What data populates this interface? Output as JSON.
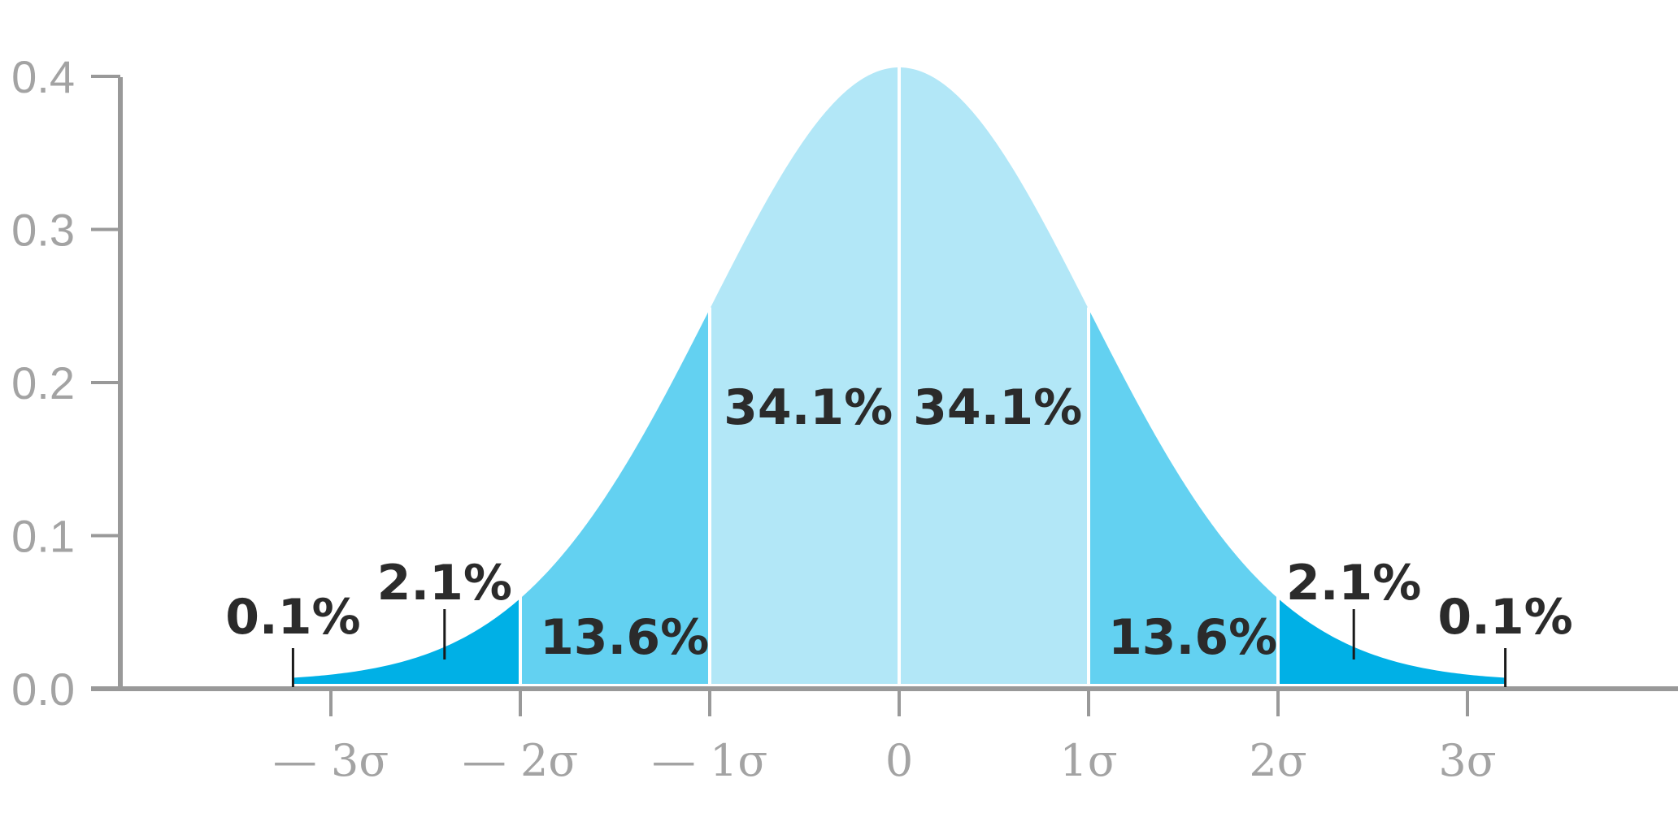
{
  "chart_data": {
    "type": "area",
    "title": "",
    "xlabel": "",
    "ylabel": "",
    "xlim": [
      -4.1,
      4.1
    ],
    "ylim": [
      0,
      0.4
    ],
    "grid": false,
    "legend": "none",
    "y_ticks": [
      {
        "value": 0.0,
        "label": "0.0"
      },
      {
        "value": 0.1,
        "label": "0.1"
      },
      {
        "value": 0.2,
        "label": "0.2"
      },
      {
        "value": 0.3,
        "label": "0.3"
      },
      {
        "value": 0.4,
        "label": "0.4"
      }
    ],
    "x_ticks": [
      {
        "value": -3,
        "label": "— 3σ"
      },
      {
        "value": -2,
        "label": "— 2σ"
      },
      {
        "value": -1,
        "label": "— 1σ"
      },
      {
        "value": 0,
        "label": "0"
      },
      {
        "value": 1,
        "label": "1σ"
      },
      {
        "value": 2,
        "label": "2σ"
      },
      {
        "value": 3,
        "label": "3σ"
      }
    ],
    "curve": "standard normal density, peak ≈ 0.4 at x = 0",
    "regions": [
      {
        "from": -3.2,
        "to": -2,
        "percent": "2.1%",
        "color": "#00b0e6"
      },
      {
        "from": -2,
        "to": -1,
        "percent": "13.6%",
        "color": "#63d1f1"
      },
      {
        "from": -1,
        "to": 0,
        "percent": "34.1%",
        "color": "#b2e7f7"
      },
      {
        "from": 0,
        "to": 1,
        "percent": "34.1%",
        "color": "#b2e7f7"
      },
      {
        "from": 1,
        "to": 2,
        "percent": "13.6%",
        "color": "#63d1f1"
      },
      {
        "from": 2,
        "to": 3.2,
        "percent": "2.1%",
        "color": "#00b0e6"
      }
    ],
    "annotations": [
      {
        "text": "0.1%",
        "x": -3.2,
        "pointer": true
      },
      {
        "text": "2.1%",
        "x": -2.4,
        "pointer": true
      },
      {
        "text": "13.6%",
        "x": -1.45,
        "pointer": false
      },
      {
        "text": "34.1%",
        "x": -0.48,
        "pointer": false
      },
      {
        "text": "34.1%",
        "x": 0.52,
        "pointer": false
      },
      {
        "text": "13.6%",
        "x": 1.55,
        "pointer": false
      },
      {
        "text": "2.1%",
        "x": 2.4,
        "pointer": true
      },
      {
        "text": "0.1%",
        "x": 3.2,
        "pointer": true
      }
    ],
    "colors": {
      "axis": "#999999",
      "tick_text": "#a3a3a3",
      "label_text": "#2b2b2b",
      "separator": "#ffffff"
    }
  }
}
